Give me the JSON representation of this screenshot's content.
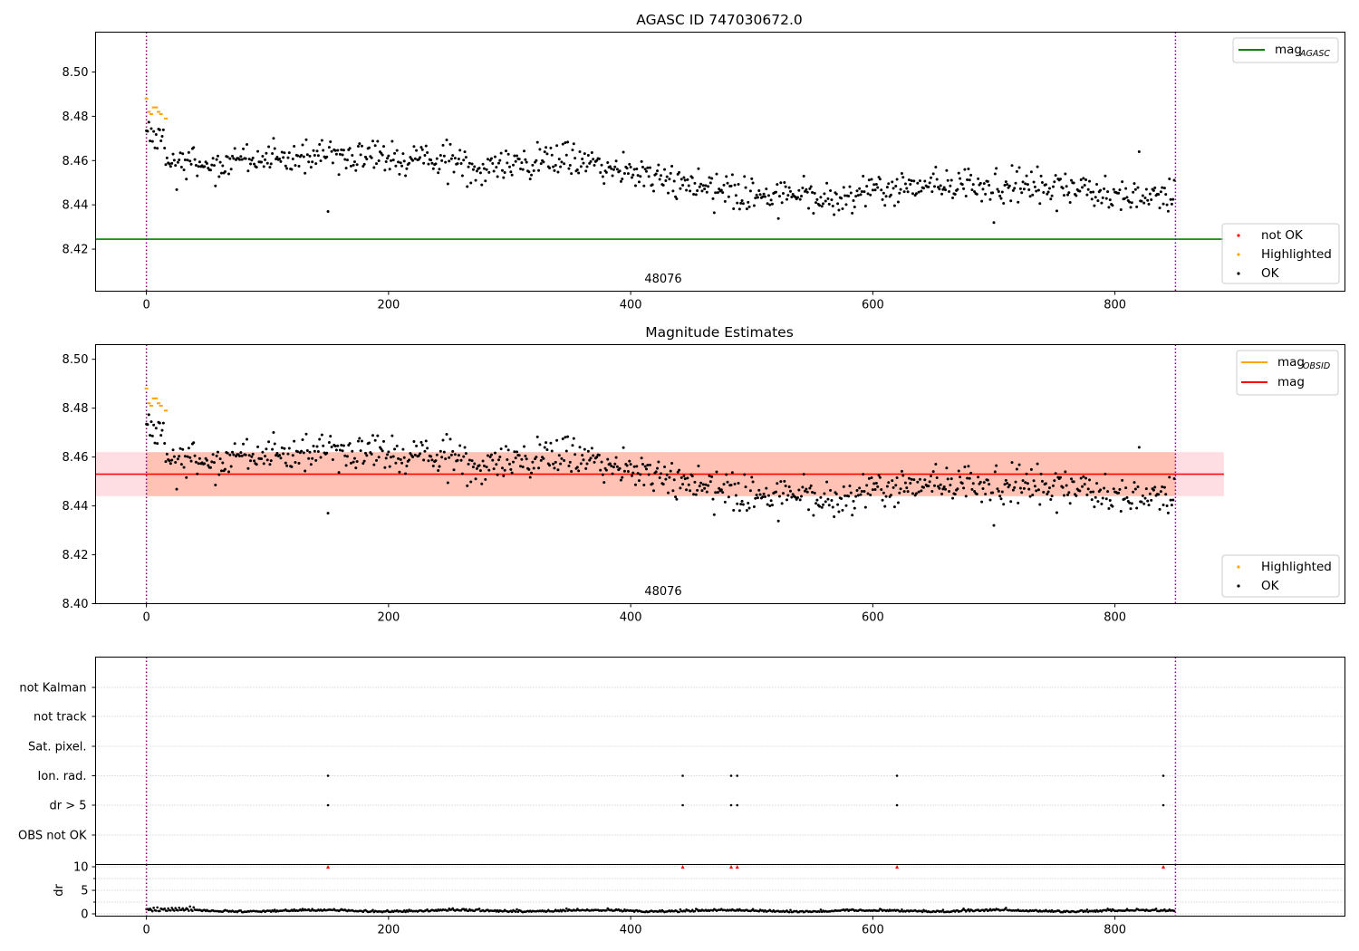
{
  "chart_data": [
    {
      "type": "scatter",
      "title": "AGASC ID 747030672.0",
      "xlim": [
        -42,
        990
      ],
      "ylim": [
        8.401,
        8.518
      ],
      "xticks": [
        0,
        200,
        400,
        600,
        800
      ],
      "yticks": [
        8.42,
        8.44,
        8.46,
        8.48,
        8.5
      ],
      "ytick_labels": [
        "8.42",
        "8.44",
        "8.46",
        "8.48",
        "8.50"
      ],
      "grid": false,
      "annotation": "48076",
      "annotation_x": 400,
      "obs_bounds": [
        0,
        850
      ],
      "bound_color": "#800080",
      "reference_line": {
        "label": "mag",
        "subscript": "AGASC",
        "value": 8.4245,
        "x_end": 890,
        "color": "#008000"
      },
      "series": [
        {
          "name": "not OK",
          "color": "#ff0000",
          "count": 0
        },
        {
          "name": "Highlighted",
          "color": "#ffa500",
          "count": 8,
          "x_range": [
            0,
            16
          ]
        },
        {
          "name": "OK",
          "color": "#000000",
          "count": 850,
          "x_range": [
            0,
            850
          ]
        }
      ],
      "trend": {
        "x": [
          0,
          10,
          20,
          60,
          150,
          300,
          350,
          400,
          500,
          560,
          650,
          750,
          850
        ],
        "y": [
          8.474,
          8.47,
          8.46,
          8.458,
          8.463,
          8.457,
          8.461,
          8.455,
          8.445,
          8.444,
          8.45,
          8.448,
          8.442
        ],
        "scatter": 0.005
      },
      "outliers": [
        {
          "x": 150,
          "y": 8.437
        },
        {
          "x": 820,
          "y": 8.464
        },
        {
          "x": 700,
          "y": 8.432
        }
      ],
      "legend_upper": "top-right",
      "legend_lower": "bottom-right"
    },
    {
      "type": "scatter",
      "title": "Magnitude Estimates",
      "xlim": [
        -42,
        990
      ],
      "ylim": [
        8.4,
        8.506
      ],
      "xticks": [
        0,
        200,
        400,
        600,
        800
      ],
      "yticks": [
        8.4,
        8.42,
        8.44,
        8.46,
        8.48,
        8.5
      ],
      "ytick_labels": [
        "8.40",
        "8.42",
        "8.44",
        "8.46",
        "8.48",
        "8.50"
      ],
      "grid": false,
      "annotation": "48076",
      "annotation_x": 400,
      "obs_bounds": [
        0,
        850
      ],
      "mean": {
        "label": "mag",
        "value": 8.453,
        "color": "#ff0000",
        "band": [
          8.444,
          8.462
        ],
        "band_x": [
          -42,
          890
        ],
        "band_color": "#ffb6c1"
      },
      "obsid_mag": {
        "label": "mag",
        "subscript": "OBSID",
        "value": 8.453,
        "band": [
          8.444,
          8.462
        ],
        "x_range": [
          0,
          850
        ],
        "color": "#ffa500",
        "band_color": "#ffa07a"
      },
      "series": [
        {
          "name": "Highlighted",
          "color": "#ffa500",
          "count": 8
        },
        {
          "name": "OK",
          "color": "#000000",
          "count": 850
        }
      ],
      "legend_upper": "top-right",
      "legend_lower": "bottom-right"
    },
    {
      "type": "scatter",
      "title": "",
      "xlim": [
        -42,
        990
      ],
      "xticks": [
        0,
        200,
        400,
        600,
        800
      ],
      "categories": [
        "not Kalman",
        "not track",
        "Sat. pixel.",
        "Ion. rad.",
        "dr > 5",
        "OBS not OK"
      ],
      "flags": {
        "Ion. rad.": [
          150,
          443,
          483,
          488,
          620,
          840
        ],
        "dr > 5": [
          150,
          443,
          483,
          488,
          620,
          840
        ]
      },
      "grid": true,
      "obs_bounds": [
        0,
        850
      ]
    },
    {
      "type": "scatter",
      "title": "",
      "ylabel": "dr",
      "xlim": [
        -42,
        990
      ],
      "ylim": [
        -0.5,
        11
      ],
      "yticks": [
        0,
        5,
        10
      ],
      "ytick_labels": [
        "0",
        "5",
        "10"
      ],
      "xticks": [
        0,
        200,
        400,
        600,
        800
      ],
      "xtick_labels": [
        "0",
        "200",
        "400",
        "600",
        "800"
      ],
      "clipped_markers": {
        "x": [
          150,
          443,
          483,
          488,
          620,
          840
        ],
        "y": 10,
        "color": "#ff0000"
      },
      "baseline": {
        "mean": 0.5,
        "scatter": 0.35
      },
      "grid": true,
      "obs_bounds": [
        0,
        850
      ]
    }
  ],
  "tick_labels_x": [
    "0",
    "200",
    "400",
    "600",
    "800"
  ],
  "legends": {
    "p1_upper": {
      "mag_base": "mag",
      "mag_sub": "AGASC"
    },
    "p1_lower": [
      "not OK",
      "Highlighted",
      "OK"
    ],
    "p2_upper": {
      "obsid_base": "mag",
      "obsid_sub": "OBSID",
      "mean": "mag"
    },
    "p2_lower": [
      "Highlighted",
      "OK"
    ]
  }
}
